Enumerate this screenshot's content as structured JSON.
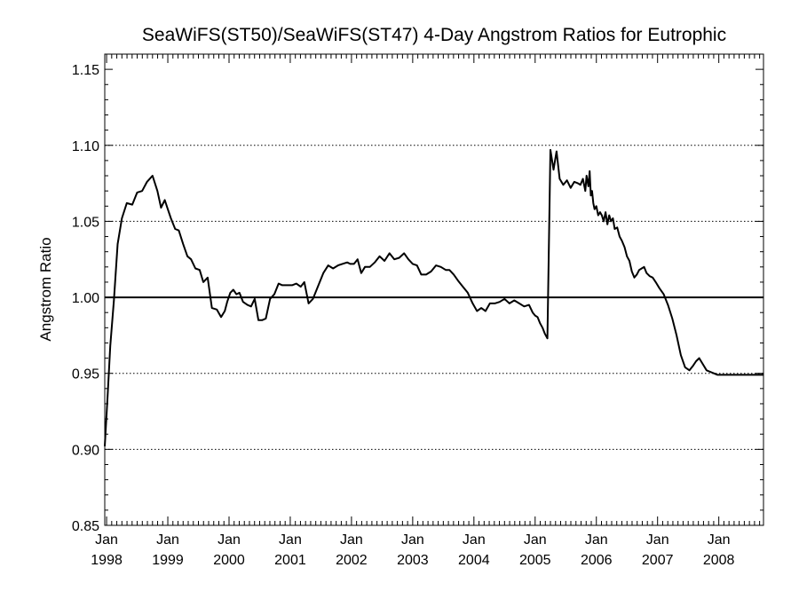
{
  "chart_data": {
    "type": "line",
    "title": "SeaWiFS(ST50)/SeaWiFS(ST47) 4-Day Angstrom Ratios for Eutrophic",
    "xlabel": "",
    "ylabel": "Angstrom Ratio",
    "ylim": [
      0.85,
      1.16
    ],
    "xlim": [
      1997.97,
      2008.73
    ],
    "y_ticks": [
      0.85,
      0.9,
      0.95,
      1.0,
      1.05,
      1.1,
      1.15
    ],
    "y_tick_labels": [
      "0.85",
      "0.90",
      "0.95",
      "1.00",
      "1.05",
      "1.10",
      "1.15"
    ],
    "x_ticks": [
      {
        "month": "Jan",
        "year": "1998",
        "x": 1998.0
      },
      {
        "month": "Jan",
        "year": "1999",
        "x": 1999.0
      },
      {
        "month": "Jan",
        "year": "2000",
        "x": 2000.0
      },
      {
        "month": "Jan",
        "year": "2001",
        "x": 2001.0
      },
      {
        "month": "Jan",
        "year": "2002",
        "x": 2002.0
      },
      {
        "month": "Jan",
        "year": "2003",
        "x": 2003.0
      },
      {
        "month": "Jan",
        "year": "2004",
        "x": 2004.0
      },
      {
        "month": "Jan",
        "year": "2005",
        "x": 2005.0
      },
      {
        "month": "Jan",
        "year": "2006",
        "x": 2006.0
      },
      {
        "month": "Jan",
        "year": "2007",
        "x": 2007.0
      },
      {
        "month": "Jan",
        "year": "2008",
        "x": 2008.0
      }
    ],
    "grid": {
      "style": "dotted",
      "y_lines": [
        0.9,
        0.95,
        1.05,
        1.1
      ]
    },
    "reference_line": {
      "y": 1.0,
      "style": "solid"
    },
    "series": [
      {
        "x": [
          1997.97,
          1998.02,
          1998.06,
          1998.12,
          1998.18,
          1998.25,
          1998.33,
          1998.42,
          1998.5,
          1998.58,
          1998.66,
          1998.75,
          1998.83,
          1998.89,
          1998.95,
          1999.0,
          1999.05,
          1999.12,
          1999.18,
          1999.25,
          1999.32,
          1999.38,
          1999.45,
          1999.52,
          1999.58,
          1999.65,
          1999.72,
          1999.8,
          1999.87,
          1999.93,
          1999.97,
          2000.02,
          2000.07,
          2000.12,
          2000.17,
          2000.23,
          2000.3,
          2000.36,
          2000.42,
          2000.48,
          2000.54,
          2000.6,
          2000.67,
          2000.74,
          2000.81,
          2000.87,
          2000.92,
          2000.97,
          2001.03,
          2001.1,
          2001.17,
          2001.23,
          2001.3,
          2001.37,
          2001.45,
          2001.54,
          2001.62,
          2001.7,
          2001.78,
          2001.85,
          2001.93,
          2001.98,
          2002.04,
          2002.1,
          2002.16,
          2002.22,
          2002.3,
          2002.38,
          2002.46,
          2002.54,
          2002.62,
          2002.7,
          2002.78,
          2002.86,
          2002.93,
          2003.0,
          2003.07,
          2003.14,
          2003.22,
          2003.3,
          2003.38,
          2003.46,
          2003.54,
          2003.6,
          2003.67,
          2003.74,
          2003.82,
          2003.9,
          2003.98,
          2004.05,
          2004.12,
          2004.19,
          2004.26,
          2004.34,
          2004.42,
          2004.5,
          2004.58,
          2004.66,
          2004.74,
          2004.82,
          2004.9,
          2004.96,
          2005.0,
          2005.04,
          2005.08,
          2005.12,
          2005.16,
          2005.2,
          2005.25,
          2005.3,
          2005.35,
          2005.4,
          2005.46,
          2005.52,
          2005.58,
          2005.64,
          2005.7,
          2005.74,
          2005.78,
          2005.82,
          2005.84,
          2005.87,
          2005.89,
          2005.91,
          2005.93,
          2005.95,
          2005.97,
          2006.0,
          2006.03,
          2006.06,
          2006.09,
          2006.12,
          2006.15,
          2006.18,
          2006.21,
          2006.24,
          2006.27,
          2006.3,
          2006.34,
          2006.38,
          2006.42,
          2006.46,
          2006.5,
          2006.54,
          2006.58,
          2006.62,
          2006.66,
          2006.7,
          2006.74,
          2006.78,
          2006.82,
          2006.87,
          2006.92,
          2006.97,
          2007.03,
          2007.1,
          2007.17,
          2007.24,
          2007.31,
          2007.38,
          2007.45,
          2007.52,
          2007.58,
          2007.63,
          2007.68,
          2007.74,
          2007.8,
          2007.86,
          2007.92,
          2007.98,
          2008.05,
          2008.12,
          2008.2,
          2008.28,
          2008.36,
          2008.44,
          2008.52,
          2008.6,
          2008.68,
          2008.73
        ],
        "values": [
          0.902,
          0.937,
          0.968,
          0.998,
          1.035,
          1.052,
          1.062,
          1.061,
          1.069,
          1.07,
          1.076,
          1.08,
          1.07,
          1.059,
          1.064,
          1.058,
          1.052,
          1.045,
          1.044,
          1.035,
          1.027,
          1.025,
          1.019,
          1.018,
          1.01,
          1.013,
          0.993,
          0.992,
          0.987,
          0.991,
          0.997,
          1.003,
          1.005,
          1.002,
          1.003,
          0.997,
          0.995,
          0.994,
          0.999,
          0.985,
          0.985,
          0.986,
          0.999,
          1.002,
          1.009,
          1.008,
          1.008,
          1.008,
          1.008,
          1.009,
          1.007,
          1.01,
          0.996,
          0.999,
          1.007,
          1.016,
          1.021,
          1.019,
          1.021,
          1.022,
          1.023,
          1.022,
          1.022,
          1.025,
          1.016,
          1.02,
          1.02,
          1.023,
          1.027,
          1.024,
          1.029,
          1.025,
          1.026,
          1.029,
          1.025,
          1.022,
          1.021,
          1.015,
          1.015,
          1.017,
          1.021,
          1.02,
          1.018,
          1.018,
          1.015,
          1.011,
          1.007,
          1.003,
          0.996,
          0.991,
          0.993,
          0.991,
          0.996,
          0.996,
          0.997,
          0.999,
          0.996,
          0.998,
          0.996,
          0.994,
          0.995,
          0.99,
          0.988,
          0.987,
          0.983,
          0.98,
          0.976,
          0.973,
          1.097,
          1.084,
          1.096,
          1.078,
          1.074,
          1.077,
          1.072,
          1.076,
          1.075,
          1.074,
          1.078,
          1.07,
          1.08,
          1.073,
          1.083,
          1.067,
          1.07,
          1.062,
          1.058,
          1.06,
          1.054,
          1.056,
          1.054,
          1.05,
          1.056,
          1.048,
          1.054,
          1.05,
          1.052,
          1.045,
          1.046,
          1.04,
          1.037,
          1.033,
          1.027,
          1.024,
          1.017,
          1.013,
          1.015,
          1.018,
          1.019,
          1.02,
          1.016,
          1.014,
          1.013,
          1.01,
          1.006,
          1.002,
          0.995,
          0.986,
          0.975,
          0.962,
          0.954,
          0.952,
          0.955,
          0.958,
          0.96,
          0.956,
          0.952,
          0.951,
          0.95,
          0.949,
          0.949,
          0.949,
          0.949,
          0.949,
          0.949,
          0.949,
          0.949,
          0.949,
          0.949,
          0.949
        ]
      }
    ]
  }
}
